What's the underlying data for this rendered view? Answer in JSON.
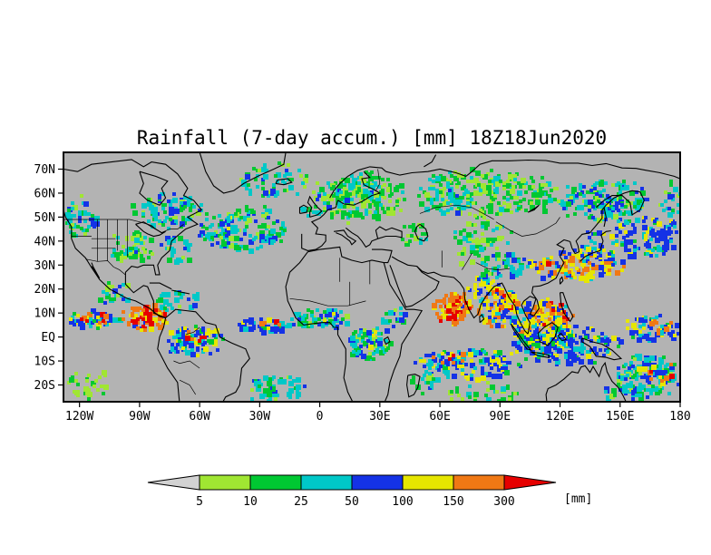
{
  "chart_data": {
    "type": "heatmap",
    "title": "Rainfall (7-day accum.) [mm] 18Z18Jun2020",
    "map_background": "#b3b3b3",
    "coastline_color": "#000000",
    "lon_range": [
      -128,
      180
    ],
    "lat_range": [
      -27,
      77
    ],
    "x_ticks": [
      {
        "label": "120W",
        "lon": -120
      },
      {
        "label": "90W",
        "lon": -90
      },
      {
        "label": "60W",
        "lon": -60
      },
      {
        "label": "30W",
        "lon": -30
      },
      {
        "label": "0",
        "lon": 0
      },
      {
        "label": "30E",
        "lon": 30
      },
      {
        "label": "60E",
        "lon": 60
      },
      {
        "label": "90E",
        "lon": 90
      },
      {
        "label": "120E",
        "lon": 120
      },
      {
        "label": "150E",
        "lon": 150
      },
      {
        "label": "180",
        "lon": 180
      }
    ],
    "y_ticks": [
      {
        "label": "70N",
        "lat": 70
      },
      {
        "label": "60N",
        "lat": 60
      },
      {
        "label": "50N",
        "lat": 50
      },
      {
        "label": "40N",
        "lat": 40
      },
      {
        "label": "30N",
        "lat": 30
      },
      {
        "label": "20N",
        "lat": 20
      },
      {
        "label": "10N",
        "lat": 10
      },
      {
        "label": "EQ",
        "lat": 0
      },
      {
        "label": "10S",
        "lat": -10
      },
      {
        "label": "20S",
        "lat": -20
      }
    ],
    "colorbar": {
      "levels": [
        5,
        10,
        25,
        50,
        100,
        150,
        300
      ],
      "labels": [
        "5",
        "10",
        "25",
        "50",
        "100",
        "150",
        "300"
      ],
      "units": "[mm]",
      "below_color": "#d2d2d2",
      "above_color": "#e60000",
      "segment_colors": [
        "#a0e632",
        "#00c832",
        "#00c8c8",
        "#1432e6",
        "#e6e600",
        "#f07814"
      ]
    },
    "palette": [
      "#a0e632",
      "#00c832",
      "#00c8c8",
      "#1432e6",
      "#e6e600",
      "#f07814",
      "#e60000"
    ],
    "features": [
      {
        "name": "pacific-itcz-west",
        "lon": [
          -128,
          -100
        ],
        "lat": [
          4,
          12
        ],
        "level": 50,
        "density": 0.9
      },
      {
        "name": "pacific-itcz-orange",
        "lon": [
          -124,
          -102
        ],
        "lat": [
          6,
          11
        ],
        "level": 150,
        "density": 0.35
      },
      {
        "name": "east-pacific-central-america",
        "lon": [
          -100,
          -76
        ],
        "lat": [
          3,
          15
        ],
        "level": 150,
        "density": 0.85
      },
      {
        "name": "central-america-core",
        "lon": [
          -96,
          -84
        ],
        "lat": [
          5,
          12
        ],
        "level": 300,
        "density": 0.4
      },
      {
        "name": "colombia-amazon",
        "lon": [
          -78,
          -48
        ],
        "lat": [
          -8,
          6
        ],
        "level": 50,
        "density": 0.75
      },
      {
        "name": "amazon-orange-spots",
        "lon": [
          -72,
          -54
        ],
        "lat": [
          -3,
          4
        ],
        "level": 150,
        "density": 0.22
      },
      {
        "name": "caribbean",
        "lon": [
          -85,
          -60
        ],
        "lat": [
          11,
          21
        ],
        "level": 25,
        "density": 0.45
      },
      {
        "name": "north-atlantic-storm-track",
        "lon": [
          -64,
          -16
        ],
        "lat": [
          36,
          56
        ],
        "level": 25,
        "density": 0.55
      },
      {
        "name": "newfoundland-blue",
        "lon": [
          -56,
          -40
        ],
        "lat": [
          42,
          52
        ],
        "level": 50,
        "density": 0.3
      },
      {
        "name": "pacific-northwest",
        "lon": [
          -128,
          -112
        ],
        "lat": [
          42,
          60
        ],
        "level": 25,
        "density": 0.65
      },
      {
        "name": "central-us",
        "lon": [
          -106,
          -84
        ],
        "lat": [
          30,
          46
        ],
        "level": 10,
        "density": 0.6
      },
      {
        "name": "midwest-cyan",
        "lon": [
          -100,
          -88
        ],
        "lat": [
          34,
          43
        ],
        "level": 25,
        "density": 0.3
      },
      {
        "name": "eastern-canada",
        "lon": [
          -95,
          -56
        ],
        "lat": [
          46,
          62
        ],
        "level": 25,
        "density": 0.5
      },
      {
        "name": "us-east-coast",
        "lon": [
          -82,
          -64
        ],
        "lat": [
          30,
          44
        ],
        "level": 25,
        "density": 0.35
      },
      {
        "name": "south-atlantic",
        "lon": [
          -38,
          -8
        ],
        "lat": [
          -28,
          -14
        ],
        "level": 25,
        "density": 0.5
      },
      {
        "name": "atlantic-itcz",
        "lon": [
          -46,
          -14
        ],
        "lat": [
          2,
          9
        ],
        "level": 50,
        "density": 0.7
      },
      {
        "name": "atlantic-itcz-orange",
        "lon": [
          -32,
          -18
        ],
        "lat": [
          3,
          8
        ],
        "level": 150,
        "density": 0.3
      },
      {
        "name": "northern-europe",
        "lon": [
          -6,
          42
        ],
        "lat": [
          48,
          70
        ],
        "level": 10,
        "density": 0.65
      },
      {
        "name": "scandinavia-cyan",
        "lon": [
          4,
          32
        ],
        "lat": [
          54,
          66
        ],
        "level": 25,
        "density": 0.3
      },
      {
        "name": "uk-ireland",
        "lon": [
          -11,
          4
        ],
        "lat": [
          50,
          60
        ],
        "level": 25,
        "density": 0.35
      },
      {
        "name": "greenland-sea",
        "lon": [
          -44,
          -6
        ],
        "lat": [
          58,
          74
        ],
        "level": 25,
        "density": 0.35
      },
      {
        "name": "west-africa-itcz",
        "lon": [
          -17,
          16
        ],
        "lat": [
          4,
          13
        ],
        "level": 25,
        "density": 0.7
      },
      {
        "name": "west-africa-blue",
        "lon": [
          -6,
          12
        ],
        "lat": [
          5,
          11
        ],
        "level": 50,
        "density": 0.3
      },
      {
        "name": "congo-basin",
        "lon": [
          12,
          35
        ],
        "lat": [
          -10,
          6
        ],
        "level": 25,
        "density": 0.65
      },
      {
        "name": "congo-blue",
        "lon": [
          17,
          30
        ],
        "lat": [
          -5,
          4
        ],
        "level": 50,
        "density": 0.3
      },
      {
        "name": "east-africa",
        "lon": [
          29,
          42
        ],
        "lat": [
          2,
          14
        ],
        "level": 25,
        "density": 0.45
      },
      {
        "name": "caucasus-green",
        "lon": [
          38,
          54
        ],
        "lat": [
          38,
          48
        ],
        "level": 10,
        "density": 0.4
      },
      {
        "name": "arabian-sea-monsoon",
        "lon": [
          55,
          77
        ],
        "lat": [
          6,
          20
        ],
        "level": 150,
        "density": 0.9
      },
      {
        "name": "arabian-sea-core",
        "lon": [
          60,
          73
        ],
        "lat": [
          9,
          17
        ],
        "level": 300,
        "density": 0.45
      },
      {
        "name": "india-interior",
        "lon": [
          72,
          88
        ],
        "lat": [
          15,
          27
        ],
        "level": 100,
        "density": 0.5
      },
      {
        "name": "bay-of-bengal",
        "lon": [
          78,
          100
        ],
        "lat": [
          4,
          23
        ],
        "level": 100,
        "density": 0.85
      },
      {
        "name": "bengal-orange",
        "lon": [
          84,
          98
        ],
        "lat": [
          11,
          21
        ],
        "level": 150,
        "density": 0.45
      },
      {
        "name": "southeast-asia",
        "lon": [
          95,
          125
        ],
        "lat": [
          -6,
          18
        ],
        "level": 100,
        "density": 0.8
      },
      {
        "name": "philippines-orange",
        "lon": [
          105,
          126
        ],
        "lat": [
          4,
          16
        ],
        "level": 150,
        "density": 0.45
      },
      {
        "name": "philippines-red",
        "lon": [
          114,
          126
        ],
        "lat": [
          7,
          14
        ],
        "level": 300,
        "density": 0.25
      },
      {
        "name": "maritime-continent",
        "lon": [
          95,
          152
        ],
        "lat": [
          -11,
          6
        ],
        "level": 50,
        "density": 0.7
      },
      {
        "name": "south-indian-band",
        "lon": [
          46,
          100
        ],
        "lat": [
          -17,
          -4
        ],
        "level": 50,
        "density": 0.7
      },
      {
        "name": "south-indian-orange",
        "lon": [
          54,
          76
        ],
        "lat": [
          -11,
          -5
        ],
        "level": 150,
        "density": 0.25
      },
      {
        "name": "madagascar-east",
        "lon": [
          44,
          58
        ],
        "lat": [
          -23,
          -11
        ],
        "level": 25,
        "density": 0.4
      },
      {
        "name": "meiyu-front",
        "lon": [
          103,
          152
        ],
        "lat": [
          24,
          37
        ],
        "level": 100,
        "density": 0.7
      },
      {
        "name": "meiyu-orange",
        "lon": [
          110,
          132
        ],
        "lat": [
          26,
          33
        ],
        "level": 150,
        "density": 0.3
      },
      {
        "name": "japan-rain",
        "lon": [
          128,
          148
        ],
        "lat": [
          31,
          45
        ],
        "level": 50,
        "density": 0.45
      },
      {
        "name": "northwest-pacific",
        "lon": [
          145,
          180
        ],
        "lat": [
          33,
          52
        ],
        "level": 50,
        "density": 0.6
      },
      {
        "name": "northeast-asia",
        "lon": [
          118,
          166
        ],
        "lat": [
          48,
          67
        ],
        "level": 25,
        "density": 0.6
      },
      {
        "name": "okhotsk-blue",
        "lon": [
          130,
          152
        ],
        "lat": [
          50,
          61
        ],
        "level": 50,
        "density": 0.28
      },
      {
        "name": "siberia",
        "lon": [
          44,
          120
        ],
        "lat": [
          50,
          71
        ],
        "level": 10,
        "density": 0.55
      },
      {
        "name": "ural-cyan",
        "lon": [
          52,
          78
        ],
        "lat": [
          52,
          64
        ],
        "level": 25,
        "density": 0.28
      },
      {
        "name": "central-asia",
        "lon": [
          64,
          96
        ],
        "lat": [
          36,
          50
        ],
        "level": 10,
        "density": 0.45
      },
      {
        "name": "himalaya-china",
        "lon": [
          74,
          104
        ],
        "lat": [
          25,
          36
        ],
        "level": 25,
        "density": 0.55
      },
      {
        "name": "tibet-west-green",
        "lon": [
          66,
          76
        ],
        "lat": [
          30,
          38
        ],
        "level": 10,
        "density": 0.4
      },
      {
        "name": "spcz",
        "lon": [
          146,
          180
        ],
        "lat": [
          -26,
          -5
        ],
        "level": 25,
        "density": 0.6
      },
      {
        "name": "spcz-blue",
        "lon": [
          152,
          174
        ],
        "lat": [
          -17,
          -6
        ],
        "level": 50,
        "density": 0.3
      },
      {
        "name": "spcz-orange",
        "lon": [
          160,
          177
        ],
        "lat": [
          -19,
          -8
        ],
        "level": 150,
        "density": 0.22
      },
      {
        "name": "australia-northeast",
        "lon": [
          142,
          160
        ],
        "lat": [
          -28,
          -14
        ],
        "level": 25,
        "density": 0.45
      },
      {
        "name": "mexico-west",
        "lon": [
          -112,
          -94
        ],
        "lat": [
          14,
          24
        ],
        "level": 25,
        "density": 0.45
      },
      {
        "name": "equatorial-pacific-west",
        "lon": [
          150,
          180
        ],
        "lat": [
          -2,
          10
        ],
        "level": 50,
        "density": 0.6
      },
      {
        "name": "equatorial-pacific-orange",
        "lon": [
          158,
          178
        ],
        "lat": [
          2,
          8
        ],
        "level": 150,
        "density": 0.25
      },
      {
        "name": "bering-edge",
        "lon": [
          168,
          180
        ],
        "lat": [
          50,
          66
        ],
        "level": 25,
        "density": 0.45
      },
      {
        "name": "south-pacific-sparse",
        "lon": [
          -128,
          -104
        ],
        "lat": [
          -26,
          -12
        ],
        "level": 5,
        "density": 0.3
      },
      {
        "name": "south-indian-far",
        "lon": [
          60,
          100
        ],
        "lat": [
          -27,
          -18
        ],
        "level": 10,
        "density": 0.35
      }
    ]
  }
}
